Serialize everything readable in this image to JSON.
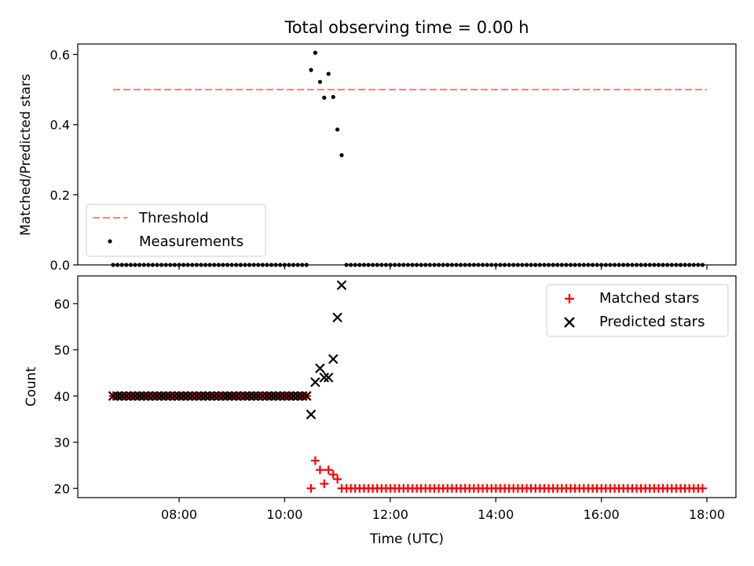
{
  "chart_data": {
    "title": "Total observing time = 0.00 h",
    "xlabel": "Time (UTC)",
    "x_ticks": [
      "08:00",
      "10:00",
      "12:00",
      "14:00",
      "16:00",
      "18:00"
    ],
    "x_tick_hours": [
      8,
      10,
      12,
      14,
      16,
      18
    ],
    "xlim_hours": [
      6.08,
      18.55
    ],
    "top": {
      "type": "scatter",
      "ylabel": "Matched/Predicted stars",
      "ylim": [
        0,
        0.63
      ],
      "y_ticks": [
        0.0,
        0.2,
        0.4,
        0.6
      ],
      "y_tick_labels": [
        "0.0",
        "0.2",
        "0.4",
        "0.6"
      ],
      "threshold": {
        "name": "Threshold",
        "value": 0.5,
        "x_range_hours": [
          6.75,
          18.0
        ],
        "color": "#ff7f7f"
      },
      "measurements_name": "Measurements",
      "legend_placement": "lower-left"
    },
    "bottom": {
      "type": "scatter",
      "ylabel": "Count",
      "ylim": [
        18,
        66
      ],
      "y_ticks": [
        20,
        30,
        40,
        50,
        60
      ],
      "y_tick_labels": [
        "20",
        "30",
        "40",
        "50",
        "60"
      ],
      "matched_name": "Matched stars",
      "predicted_name": "Predicted stars",
      "matched_color": "#ff0000",
      "predicted_color": "#000000",
      "legend_placement": "upper-right"
    },
    "time_hours": {
      "start": 6.75,
      "step": 0.0833,
      "pre_count": 45,
      "active": [
        10.5,
        10.58,
        10.67,
        10.75,
        10.83,
        10.92,
        11.0,
        11.08
      ],
      "post_start": 11.17,
      "post_count": 82
    },
    "active_ratio": [
      0.556,
      0.605,
      0.522,
      0.477,
      0.545,
      0.479,
      0.386,
      0.313
    ],
    "active_matched": [
      20,
      26,
      24,
      21,
      24,
      23,
      22,
      20
    ],
    "active_predicted": [
      36,
      43,
      46,
      44,
      44,
      48,
      57,
      64
    ],
    "pre_matched_value": 40,
    "pre_predicted_value": 40,
    "post_matched_value": 20,
    "post_ratio_value": 0.0
  }
}
